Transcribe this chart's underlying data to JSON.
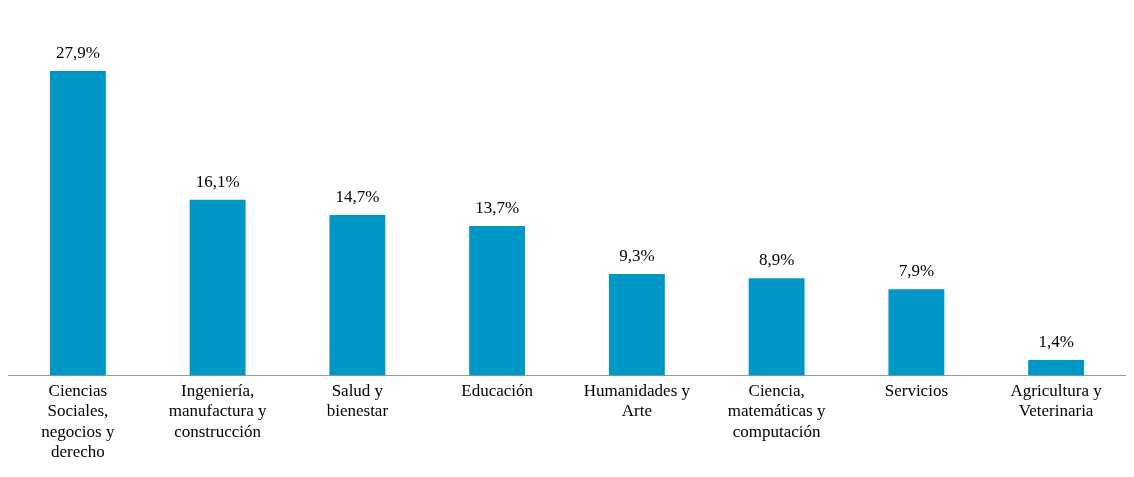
{
  "chart_data": {
    "type": "bar",
    "categories": [
      "Ciencias Sociales, negocios y derecho",
      "Ingeniería, manufactura y construcción",
      "Salud y bienestar",
      "Educación",
      "Humanidades y Arte",
      "Ciencia, matemáticas y computación",
      "Servicios",
      "Agricultura y Veterinaria"
    ],
    "values": [
      27.9,
      16.1,
      14.7,
      13.7,
      9.3,
      8.9,
      7.9,
      1.4
    ],
    "value_labels": [
      "27,9%",
      "16,1%",
      "14,7%",
      "13,7%",
      "9,3%",
      "8,9%",
      "7,9%",
      "1,4%"
    ],
    "color": "#0096c6",
    "grid": false,
    "legend": false
  }
}
